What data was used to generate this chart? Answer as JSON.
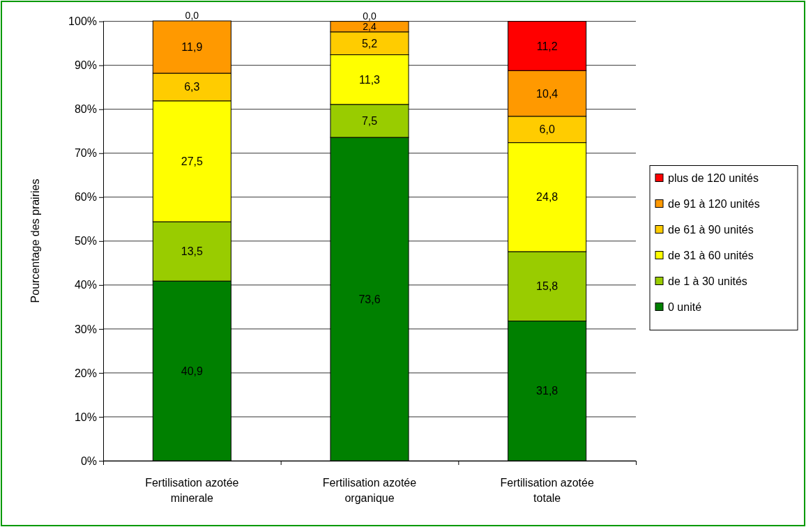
{
  "chart_data": {
    "type": "bar",
    "stacked": true,
    "ylabel": "Pourcentage des prairies",
    "categories": [
      "Fertilisation azotée minerale",
      "Fertilisation azotée organique",
      "Fertilisation azotée totale"
    ],
    "series": [
      {
        "name": "0 unité",
        "color": "#008000",
        "values": [
          40.9,
          73.6,
          31.8
        ],
        "value_labels": [
          "40,9",
          "73,6",
          "31,8"
        ]
      },
      {
        "name": "de 1 à 30 unités",
        "color": "#99cc00",
        "values": [
          13.5,
          7.5,
          15.8
        ],
        "value_labels": [
          "13,5",
          "7,5",
          "15,8"
        ]
      },
      {
        "name": "de 31 à 60 unités",
        "color": "#ffff00",
        "values": [
          27.5,
          11.3,
          24.8
        ],
        "value_labels": [
          "27,5",
          "11,3",
          "24,8"
        ]
      },
      {
        "name": "de 61 à 90 unités",
        "color": "#ffcc00",
        "values": [
          6.3,
          5.2,
          6.0
        ],
        "value_labels": [
          "6,3",
          "5,2",
          "6,0"
        ]
      },
      {
        "name": "de 91 à 120 unités",
        "color": "#ff9900",
        "values": [
          11.9,
          2.4,
          10.4
        ],
        "value_labels": [
          "11,9",
          "2,4",
          "10,4"
        ]
      },
      {
        "name": "plus de 120 unités",
        "color": "#ff0000",
        "values": [
          0.0,
          0.0,
          11.2
        ],
        "value_labels": [
          "0,0",
          "0,0",
          "11,2"
        ]
      }
    ],
    "ylim": [
      0,
      100.1
    ],
    "yticks": [
      {
        "value": 0,
        "label": "0%"
      },
      {
        "value": 10,
        "label": "10%"
      },
      {
        "value": 20,
        "label": "20%"
      },
      {
        "value": 30,
        "label": "30%"
      },
      {
        "value": 40,
        "label": "40%"
      },
      {
        "value": 50,
        "label": "50%"
      },
      {
        "value": 60,
        "label": "60%"
      },
      {
        "value": 70,
        "label": "70%"
      },
      {
        "value": 80,
        "label": "80%"
      },
      {
        "value": 90,
        "label": "90%"
      },
      {
        "value": 100,
        "label": "100%"
      }
    ],
    "grid": "y",
    "legend": "right"
  }
}
